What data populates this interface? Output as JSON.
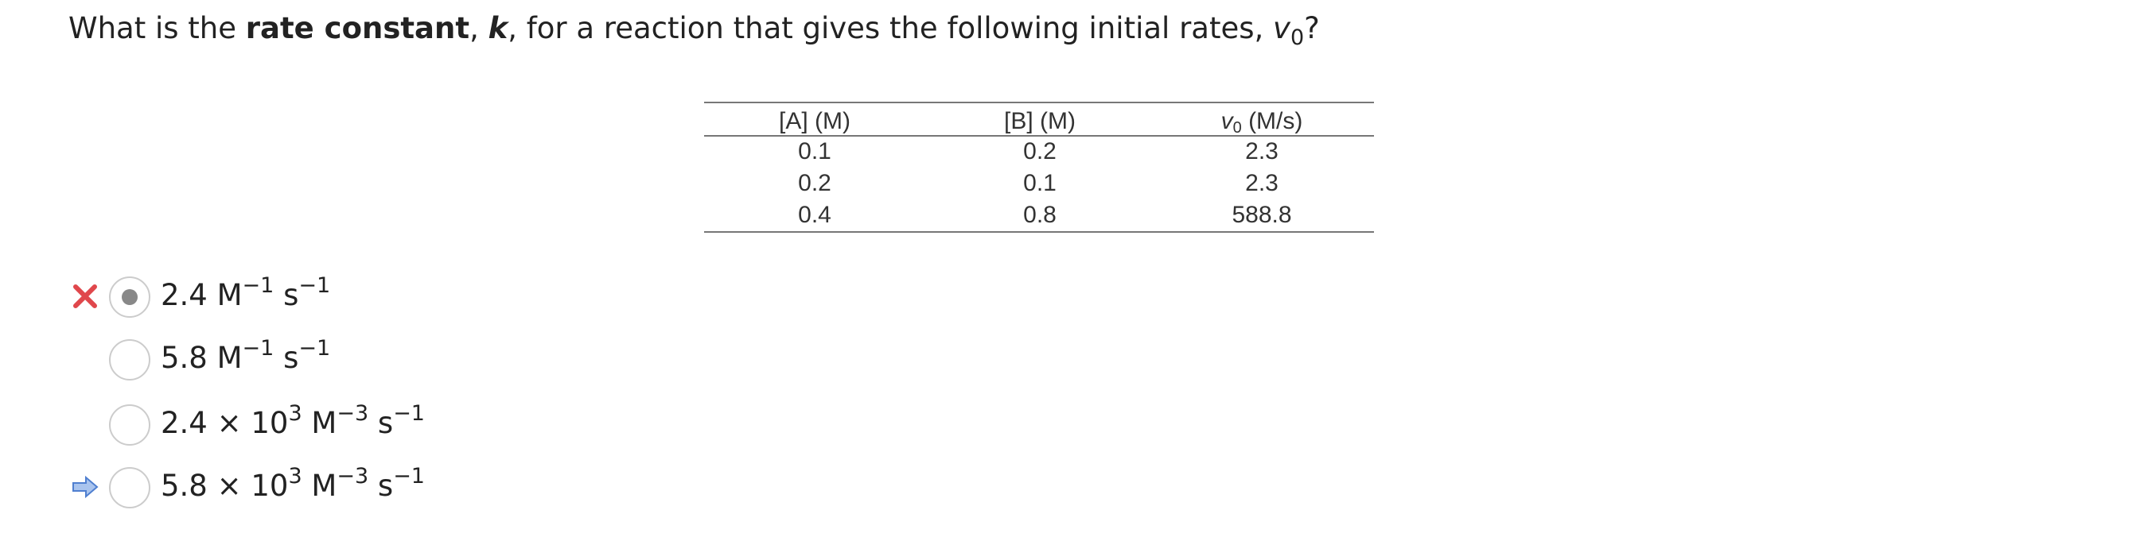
{
  "question": {
    "prefix": "What is the ",
    "bold": "rate constant",
    "sep": ", ",
    "k": "k",
    "middle": ", for a reaction that gives the following initial rates, ",
    "v": "v",
    "sub": "0",
    "end": "?"
  },
  "table": {
    "headers": [
      {
        "text": "[A] (M)"
      },
      {
        "text": "[B] (M)"
      },
      {
        "v": "v",
        "sub": "0",
        "text": " (M/s)"
      }
    ],
    "rows": [
      [
        0.1,
        0.2,
        2.3
      ],
      [
        0.2,
        0.1,
        2.3
      ],
      [
        0.4,
        0.8,
        588.8
      ]
    ]
  },
  "options": [
    {
      "parts": [
        {
          "t": "2.4 M"
        },
        {
          "sup": "−1"
        },
        {
          "t": " s"
        },
        {
          "sup": "−1"
        }
      ],
      "selected": true,
      "marker": "incorrect"
    },
    {
      "parts": [
        {
          "t": "5.8 M"
        },
        {
          "sup": "−1"
        },
        {
          "t": " s"
        },
        {
          "sup": "−1"
        }
      ],
      "selected": false
    },
    {
      "parts": [
        {
          "t": "2.4 × 10"
        },
        {
          "sup": "3"
        },
        {
          "t": " M"
        },
        {
          "sup": "−3"
        },
        {
          "t": " s"
        },
        {
          "sup": "−1"
        }
      ],
      "selected": false
    },
    {
      "parts": [
        {
          "t": "5.8 × 10"
        },
        {
          "sup": "3"
        },
        {
          "t": " M"
        },
        {
          "sup": "−3"
        },
        {
          "t": " s"
        },
        {
          "sup": "−1"
        }
      ],
      "selected": false,
      "marker": "correct"
    }
  ]
}
